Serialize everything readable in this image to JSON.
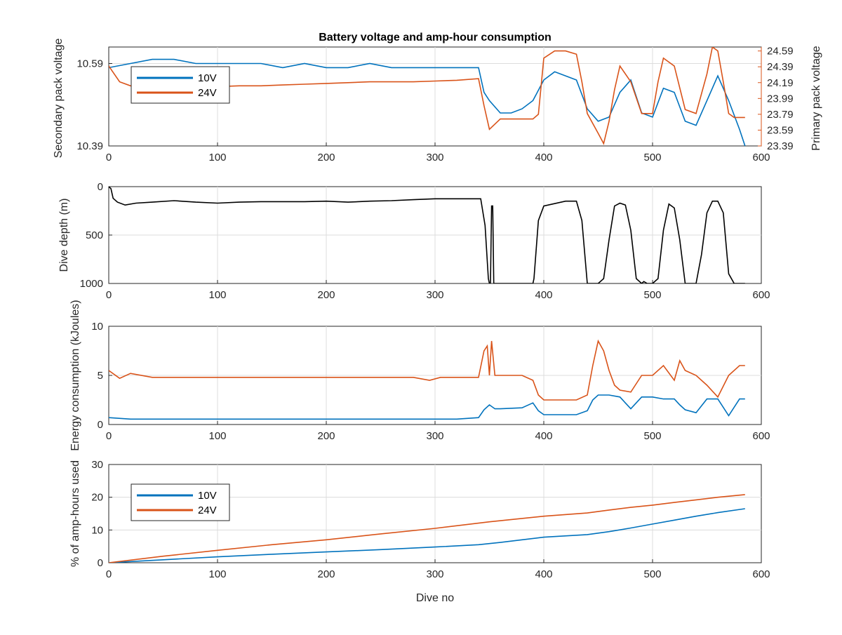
{
  "colors": {
    "v10": "#0072BD",
    "v24": "#D95319",
    "depth": "#000000",
    "grid": "#dcdcdc",
    "axis": "#262626"
  },
  "chart_data": [
    {
      "type": "line",
      "title": "Battery voltage and amp-hour consumption",
      "xlim": [
        0,
        600
      ],
      "xticks": [
        "0",
        "100",
        "200",
        "300",
        "400",
        "500",
        "600"
      ],
      "ylabel_left": "Secondary pack voltage",
      "ylabel_right": "Primary pack voltage",
      "ylim_left": [
        10.39,
        10.63
      ],
      "ylim_right": [
        23.39,
        24.64
      ],
      "yticks_left": [
        "10.39",
        "10.59"
      ],
      "yticks_right": [
        "23.39",
        "23.59",
        "23.79",
        "23.99",
        "24.19",
        "24.39",
        "24.59"
      ],
      "legend": {
        "location": "upper-left",
        "entries": [
          "10V",
          "24V"
        ]
      },
      "grid": true,
      "series": [
        {
          "name": "10V",
          "axis": "left",
          "x": [
            0,
            20,
            40,
            60,
            80,
            100,
            120,
            140,
            160,
            180,
            200,
            220,
            240,
            260,
            280,
            300,
            320,
            340,
            345,
            350,
            360,
            370,
            380,
            390,
            400,
            410,
            420,
            430,
            440,
            450,
            460,
            470,
            480,
            490,
            500,
            510,
            520,
            530,
            540,
            550,
            560,
            570,
            580,
            585
          ],
          "y": [
            10.58,
            10.59,
            10.6,
            10.6,
            10.59,
            10.59,
            10.59,
            10.59,
            10.58,
            10.59,
            10.58,
            10.58,
            10.59,
            10.58,
            10.58,
            10.58,
            10.58,
            10.58,
            10.52,
            10.5,
            10.47,
            10.47,
            10.48,
            10.5,
            10.55,
            10.57,
            10.56,
            10.55,
            10.48,
            10.45,
            10.46,
            10.52,
            10.55,
            10.47,
            10.46,
            10.53,
            10.52,
            10.45,
            10.44,
            10.5,
            10.56,
            10.5,
            10.43,
            10.39
          ]
        },
        {
          "name": "24V",
          "axis": "right",
          "x": [
            0,
            10,
            20,
            40,
            60,
            80,
            100,
            120,
            140,
            160,
            180,
            200,
            220,
            240,
            260,
            280,
            300,
            320,
            340,
            345,
            350,
            360,
            370,
            380,
            390,
            395,
            400,
            410,
            420,
            430,
            435,
            440,
            450,
            455,
            460,
            465,
            470,
            480,
            490,
            500,
            505,
            510,
            520,
            530,
            540,
            550,
            555,
            560,
            565,
            570,
            575,
            580,
            585
          ],
          "y": [
            24.4,
            24.2,
            24.15,
            24.12,
            24.12,
            24.13,
            24.14,
            24.15,
            24.15,
            24.16,
            24.17,
            24.18,
            24.19,
            24.2,
            24.2,
            24.2,
            24.21,
            24.22,
            24.24,
            23.9,
            23.6,
            23.73,
            23.73,
            23.73,
            23.73,
            23.79,
            24.5,
            24.59,
            24.59,
            24.55,
            24.2,
            23.8,
            23.55,
            23.42,
            23.7,
            24.1,
            24.4,
            24.2,
            23.8,
            23.8,
            24.2,
            24.5,
            24.4,
            23.85,
            23.8,
            24.3,
            24.64,
            24.59,
            24.2,
            23.8,
            23.75,
            23.75,
            23.75
          ]
        }
      ]
    },
    {
      "type": "line",
      "xlim": [
        0,
        600
      ],
      "xticks": [
        "0",
        "100",
        "200",
        "300",
        "400",
        "500",
        "600"
      ],
      "ylabel": "Dive depth (m)",
      "ylim": [
        0,
        1000
      ],
      "y_reversed": true,
      "yticks": [
        "0",
        "500",
        "1000"
      ],
      "grid": true,
      "series": [
        {
          "name": "depth",
          "x": [
            0,
            2,
            4,
            8,
            15,
            25,
            40,
            60,
            80,
            100,
            120,
            140,
            160,
            180,
            200,
            220,
            240,
            260,
            280,
            300,
            320,
            340,
            342,
            346,
            349,
            350,
            351,
            352,
            353,
            354,
            355,
            360,
            390,
            391,
            395,
            400,
            420,
            430,
            435,
            440,
            450,
            455,
            460,
            465,
            470,
            475,
            480,
            485,
            490,
            492,
            495,
            500,
            505,
            510,
            515,
            520,
            525,
            530,
            540,
            545,
            550,
            555,
            560,
            565,
            570,
            575,
            580,
            585
          ],
          "y": [
            0,
            20,
            120,
            160,
            190,
            170,
            160,
            145,
            160,
            170,
            160,
            155,
            155,
            155,
            150,
            160,
            150,
            145,
            135,
            125,
            125,
            125,
            125,
            400,
            950,
            1000,
            1000,
            200,
            200,
            1000,
            1000,
            1000,
            1000,
            950,
            350,
            200,
            150,
            150,
            350,
            1000,
            1000,
            950,
            550,
            200,
            170,
            190,
            450,
            950,
            1000,
            980,
            1000,
            1000,
            950,
            450,
            180,
            220,
            550,
            1000,
            1000,
            700,
            270,
            150,
            150,
            270,
            900,
            1000,
            1000,
            1000
          ]
        }
      ]
    },
    {
      "type": "line",
      "xlim": [
        0,
        600
      ],
      "xticks": [
        "0",
        "100",
        "200",
        "300",
        "400",
        "500",
        "600"
      ],
      "ylabel": "Energy consumption (kJoules)",
      "ylim": [
        0,
        10
      ],
      "yticks": [
        "0",
        "5",
        "10"
      ],
      "grid": true,
      "series": [
        {
          "name": "24V",
          "x": [
            0,
            10,
            20,
            40,
            60,
            80,
            100,
            120,
            140,
            160,
            180,
            200,
            220,
            240,
            260,
            280,
            295,
            305,
            320,
            330,
            340,
            345,
            348,
            350,
            352,
            355,
            360,
            370,
            380,
            390,
            395,
            400,
            410,
            420,
            430,
            440,
            445,
            450,
            455,
            460,
            465,
            470,
            480,
            490,
            500,
            510,
            520,
            525,
            530,
            540,
            550,
            560,
            570,
            580,
            585
          ],
          "y": [
            5.5,
            4.7,
            5.2,
            4.8,
            4.8,
            4.8,
            4.8,
            4.8,
            4.8,
            4.8,
            4.8,
            4.8,
            4.8,
            4.8,
            4.8,
            4.8,
            4.5,
            4.8,
            4.8,
            4.8,
            4.8,
            7.5,
            8.0,
            5.0,
            8.5,
            5.0,
            5.0,
            5.0,
            5.0,
            4.5,
            3.0,
            2.5,
            2.5,
            2.5,
            2.5,
            3.0,
            6.0,
            8.5,
            7.5,
            5.5,
            4.0,
            3.5,
            3.3,
            5.0,
            5.0,
            6.0,
            4.5,
            6.5,
            5.5,
            5.0,
            4.0,
            2.8,
            5.0,
            6.0,
            6.0
          ]
        },
        {
          "name": "10V",
          "x": [
            0,
            20,
            40,
            60,
            80,
            100,
            120,
            140,
            160,
            180,
            200,
            220,
            240,
            260,
            280,
            295,
            305,
            320,
            340,
            345,
            350,
            355,
            360,
            380,
            390,
            395,
            400,
            420,
            430,
            440,
            445,
            450,
            460,
            470,
            480,
            490,
            500,
            510,
            520,
            525,
            530,
            540,
            550,
            560,
            570,
            580,
            585
          ],
          "y": [
            0.7,
            0.55,
            0.55,
            0.55,
            0.55,
            0.55,
            0.55,
            0.55,
            0.55,
            0.55,
            0.55,
            0.55,
            0.55,
            0.55,
            0.55,
            0.55,
            0.55,
            0.55,
            0.7,
            1.5,
            2.0,
            1.6,
            1.6,
            1.7,
            2.2,
            1.4,
            1.0,
            1.0,
            1.0,
            1.4,
            2.5,
            3.0,
            3.0,
            2.8,
            1.6,
            2.8,
            2.8,
            2.6,
            2.6,
            2.0,
            1.5,
            1.2,
            2.6,
            2.6,
            0.9,
            2.6,
            2.6
          ]
        }
      ]
    },
    {
      "type": "line",
      "xlim": [
        0,
        600
      ],
      "xticks": [
        "0",
        "100",
        "200",
        "300",
        "400",
        "500",
        "600"
      ],
      "xlabel": "Dive no",
      "ylabel": "% of amp-hours used",
      "ylim": [
        0,
        30
      ],
      "yticks": [
        "0",
        "10",
        "20",
        "30"
      ],
      "legend": {
        "location": "upper-left",
        "entries": [
          "10V",
          "24V"
        ]
      },
      "grid": true,
      "series": [
        {
          "name": "10V",
          "x": [
            0,
            50,
            100,
            150,
            200,
            250,
            300,
            340,
            360,
            380,
            400,
            440,
            460,
            480,
            500,
            520,
            540,
            560,
            585
          ],
          "y": [
            0,
            0.9,
            1.8,
            2.6,
            3.3,
            4.0,
            4.8,
            5.5,
            6.2,
            7.0,
            7.8,
            8.6,
            9.5,
            10.6,
            11.8,
            13.0,
            14.2,
            15.3,
            16.5
          ]
        },
        {
          "name": "24V",
          "x": [
            0,
            50,
            100,
            150,
            200,
            250,
            300,
            350,
            400,
            440,
            460,
            480,
            500,
            520,
            540,
            560,
            585
          ],
          "y": [
            0,
            2.0,
            3.8,
            5.5,
            7.0,
            8.8,
            10.5,
            12.5,
            14.2,
            15.2,
            16.1,
            16.9,
            17.6,
            18.4,
            19.2,
            20.0,
            20.8
          ]
        }
      ]
    }
  ]
}
